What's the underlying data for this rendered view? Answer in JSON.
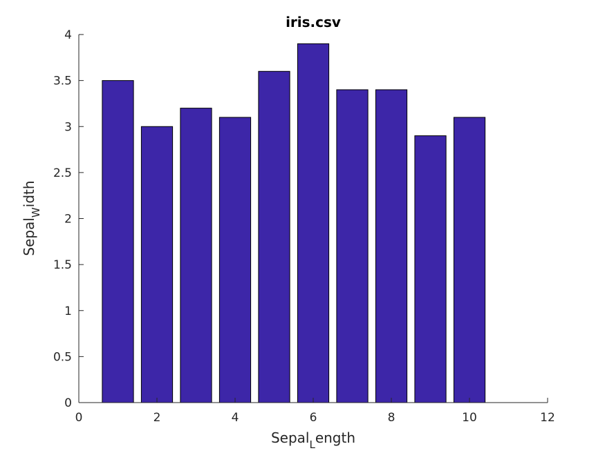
{
  "chart_data": {
    "type": "bar",
    "title": "iris.csv",
    "xlabel": {
      "base": "Sepal",
      "sub": "L",
      "rest": "ength"
    },
    "ylabel": {
      "base": "Sepal",
      "sub": "W",
      "rest": "idth"
    },
    "x": [
      1,
      2,
      3,
      4,
      5,
      6,
      7,
      8,
      9,
      10
    ],
    "values": [
      3.5,
      3.0,
      3.2,
      3.1,
      3.6,
      3.9,
      3.4,
      3.4,
      2.9,
      3.1
    ],
    "xlim": [
      0,
      12
    ],
    "ylim": [
      0,
      4
    ],
    "xticks": [
      "0",
      "2",
      "4",
      "6",
      "8",
      "10",
      "12"
    ],
    "yticks": [
      "0",
      "0.5",
      "1",
      "1.5",
      "2",
      "2.5",
      "3",
      "3.5",
      "4"
    ],
    "grid": false,
    "bar_color": "#3d26a8",
    "edge_color": "#000000"
  }
}
